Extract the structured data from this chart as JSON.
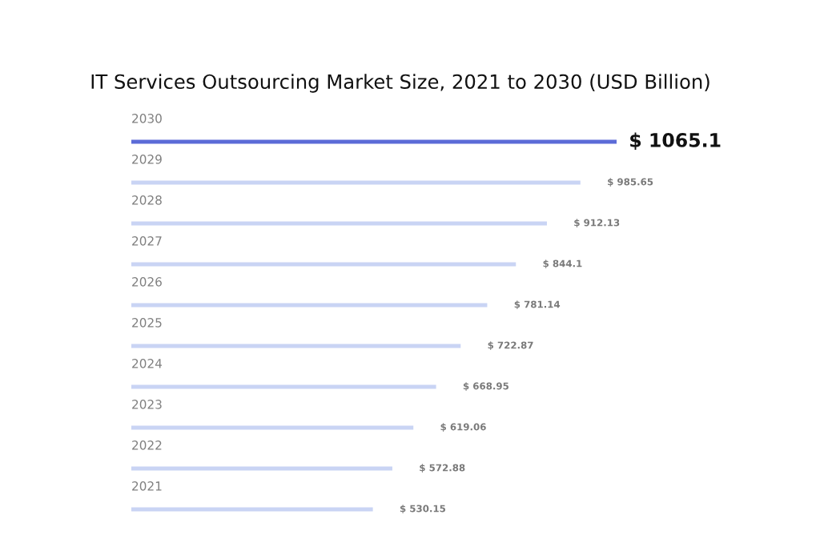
{
  "chart_data": {
    "type": "bar",
    "orientation": "horizontal",
    "title": "IT Services Outsourcing Market Size, 2021 to 2030 (USD Billion)",
    "categories": [
      "2030",
      "2029",
      "2028",
      "2027",
      "2026",
      "2025",
      "2024",
      "2023",
      "2022",
      "2021"
    ],
    "values": [
      1065.1,
      985.65,
      912.13,
      844.1,
      781.14,
      722.87,
      668.95,
      619.06,
      572.88,
      530.15
    ],
    "value_labels": [
      "$ 1065.1",
      "$ 985.65",
      "$ 912.13",
      "$ 844.1",
      "$ 781.14",
      "$ 722.87",
      "$ 668.95",
      "$ 619.06",
      "$ 572.88",
      "$ 530.15"
    ],
    "colors": [
      "#5c6bd7",
      "#c9d4f4",
      "#c9d4f4",
      "#c9d4f4",
      "#c9d4f4",
      "#c9d4f4",
      "#c9d4f4",
      "#c9d4f4",
      "#c9d4f4",
      "#c9d4f4"
    ]
  }
}
